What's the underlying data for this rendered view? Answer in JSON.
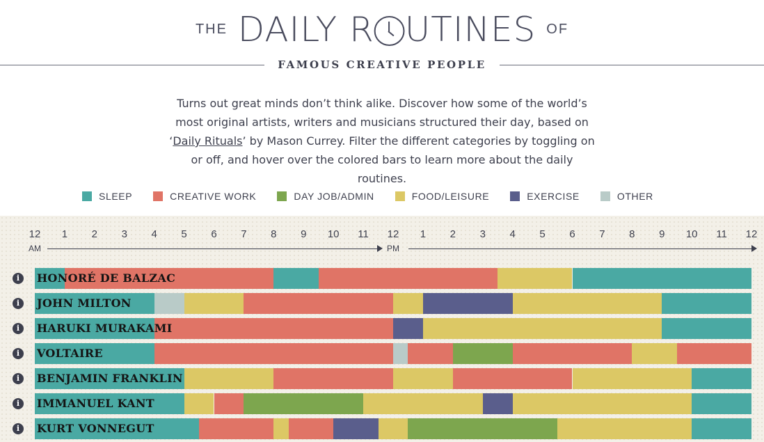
{
  "header": {
    "title_prefix": "THE",
    "title_part1": "DAILY R",
    "title_part2": "UTINES",
    "title_suffix": "OF",
    "subtitle": "FAMOUS CREATIVE PEOPLE",
    "clock_icon": "clock-icon"
  },
  "intro": {
    "line1": "Turns out great minds don’t think alike. Discover how some of the world’s",
    "line2": "most original artists, writers and musicians structured their day, based on",
    "line3_pre": "‘",
    "line3_link": "Daily Rituals",
    "line3_post": "’ by Mason Currey. Filter the different categories by toggling on",
    "line4": "or off, and hover over the colored bars to learn more about the daily",
    "line5": "routines."
  },
  "colors": {
    "sleep": "#4aa9a3",
    "creative": "#e07466",
    "dayjob": "#7da64e",
    "food": "#dcc865",
    "exercise": "#5a5e8c",
    "other": "#b9cbc8"
  },
  "legend": [
    {
      "key": "sleep",
      "label": "SLEEP"
    },
    {
      "key": "creative",
      "label": "CREATIVE WORK"
    },
    {
      "key": "dayjob",
      "label": "DAY JOB/ADMIN"
    },
    {
      "key": "food",
      "label": "FOOD/LEISURE"
    },
    {
      "key": "exercise",
      "label": "EXERCISE"
    },
    {
      "key": "other",
      "label": "OTHER"
    }
  ],
  "chart_data": {
    "type": "bar",
    "orientation": "horizontal-timeline",
    "x_domain_hours": [
      0,
      24
    ],
    "hour_labels": [
      "12",
      "1",
      "2",
      "3",
      "4",
      "5",
      "6",
      "7",
      "8",
      "9",
      "10",
      "11",
      "12",
      "1",
      "2",
      "3",
      "4",
      "5",
      "6",
      "7",
      "8",
      "9",
      "10",
      "11",
      "12"
    ],
    "am_label": "AM",
    "pm_label": "PM",
    "people": [
      {
        "name": "HONORÉ DE BALZAC",
        "segments": [
          {
            "start": 0,
            "end": 1,
            "cat": "sleep"
          },
          {
            "start": 1,
            "end": 8,
            "cat": "creative"
          },
          {
            "start": 8,
            "end": 9.5,
            "cat": "sleep"
          },
          {
            "start": 9.5,
            "end": 15.5,
            "cat": "creative"
          },
          {
            "start": 15.5,
            "end": 18,
            "cat": "food"
          },
          {
            "start": 18,
            "end": 24,
            "cat": "sleep"
          }
        ]
      },
      {
        "name": "JOHN MILTON",
        "segments": [
          {
            "start": 0,
            "end": 4,
            "cat": "sleep"
          },
          {
            "start": 4,
            "end": 5,
            "cat": "other"
          },
          {
            "start": 5,
            "end": 7,
            "cat": "food"
          },
          {
            "start": 7,
            "end": 12,
            "cat": "creative"
          },
          {
            "start": 12,
            "end": 13,
            "cat": "food"
          },
          {
            "start": 13,
            "end": 16,
            "cat": "exercise"
          },
          {
            "start": 16,
            "end": 21,
            "cat": "food"
          },
          {
            "start": 21,
            "end": 24,
            "cat": "sleep"
          }
        ]
      },
      {
        "name": "HARUKI MURAKAMI",
        "segments": [
          {
            "start": 0,
            "end": 4,
            "cat": "sleep"
          },
          {
            "start": 4,
            "end": 12,
            "cat": "creative"
          },
          {
            "start": 12,
            "end": 13,
            "cat": "exercise"
          },
          {
            "start": 13,
            "end": 21,
            "cat": "food"
          },
          {
            "start": 21,
            "end": 24,
            "cat": "sleep"
          }
        ]
      },
      {
        "name": "VOLTAIRE",
        "segments": [
          {
            "start": 0,
            "end": 4,
            "cat": "sleep"
          },
          {
            "start": 4,
            "end": 12,
            "cat": "creative"
          },
          {
            "start": 12,
            "end": 12.5,
            "cat": "other"
          },
          {
            "start": 12.5,
            "end": 14,
            "cat": "creative"
          },
          {
            "start": 14,
            "end": 16,
            "cat": "dayjob"
          },
          {
            "start": 16,
            "end": 20,
            "cat": "creative"
          },
          {
            "start": 20,
            "end": 21.5,
            "cat": "food"
          },
          {
            "start": 21.5,
            "end": 24,
            "cat": "creative"
          }
        ]
      },
      {
        "name": "BENJAMIN FRANKLIN",
        "segments": [
          {
            "start": 0,
            "end": 5,
            "cat": "sleep"
          },
          {
            "start": 5,
            "end": 8,
            "cat": "food"
          },
          {
            "start": 8,
            "end": 12,
            "cat": "creative"
          },
          {
            "start": 12,
            "end": 14,
            "cat": "food"
          },
          {
            "start": 14,
            "end": 18,
            "cat": "creative"
          },
          {
            "start": 18,
            "end": 22,
            "cat": "food"
          },
          {
            "start": 22,
            "end": 24,
            "cat": "sleep"
          }
        ]
      },
      {
        "name": "IMMANUEL KANT",
        "segments": [
          {
            "start": 0,
            "end": 5,
            "cat": "sleep"
          },
          {
            "start": 5,
            "end": 6,
            "cat": "food"
          },
          {
            "start": 6,
            "end": 7,
            "cat": "creative"
          },
          {
            "start": 7,
            "end": 11,
            "cat": "dayjob"
          },
          {
            "start": 11,
            "end": 15,
            "cat": "food"
          },
          {
            "start": 15,
            "end": 16,
            "cat": "exercise"
          },
          {
            "start": 16,
            "end": 22,
            "cat": "food"
          },
          {
            "start": 22,
            "end": 24,
            "cat": "sleep"
          }
        ]
      },
      {
        "name": "KURT VONNEGUT",
        "segments": [
          {
            "start": 0,
            "end": 5.5,
            "cat": "sleep"
          },
          {
            "start": 5.5,
            "end": 8,
            "cat": "creative"
          },
          {
            "start": 8,
            "end": 8.5,
            "cat": "food"
          },
          {
            "start": 8.5,
            "end": 10,
            "cat": "creative"
          },
          {
            "start": 10,
            "end": 11.5,
            "cat": "exercise"
          },
          {
            "start": 11.5,
            "end": 12.5,
            "cat": "food"
          },
          {
            "start": 12.5,
            "end": 17.5,
            "cat": "dayjob"
          },
          {
            "start": 17.5,
            "end": 22,
            "cat": "food"
          },
          {
            "start": 22,
            "end": 24,
            "cat": "sleep"
          }
        ]
      }
    ]
  }
}
